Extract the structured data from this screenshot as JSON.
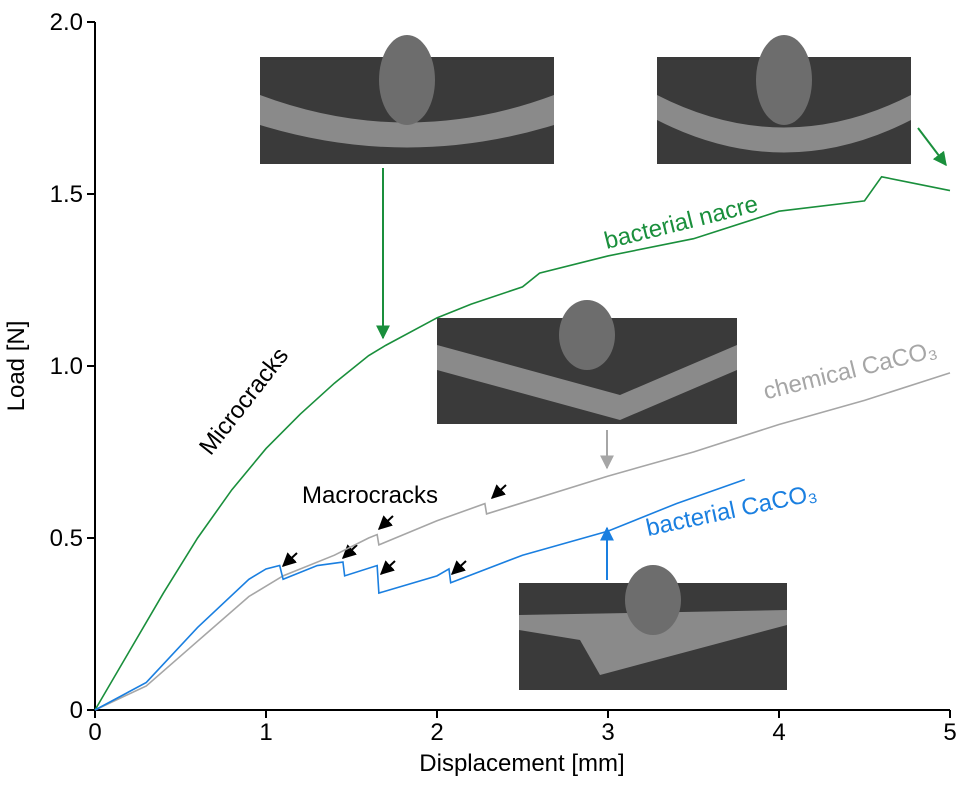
{
  "chart_data": {
    "type": "line",
    "x_label": "Displacement [mm]",
    "y_label": "Load [N]",
    "xlim": [
      0,
      5
    ],
    "xticks": [
      0,
      1,
      2,
      3,
      4,
      5
    ],
    "ylim": [
      0,
      2
    ],
    "yticks": [
      0,
      0.5,
      {
        "value": 1,
        "label": "1.0"
      },
      1.5,
      {
        "value": 2,
        "label": "2.0"
      }
    ],
    "series": [
      {
        "name": "bacterial nacre",
        "color": "#1a8f3c",
        "x": [
          0,
          0.2,
          0.4,
          0.6,
          0.8,
          1.0,
          1.2,
          1.4,
          1.6,
          1.7,
          2.0,
          2.2,
          2.5,
          2.6,
          3.0,
          3.5,
          4.0,
          4.5,
          4.6,
          4.8,
          5.0
        ],
        "values": [
          0,
          0.17,
          0.34,
          0.5,
          0.64,
          0.76,
          0.86,
          0.95,
          1.03,
          1.06,
          1.14,
          1.18,
          1.23,
          1.27,
          1.32,
          1.37,
          1.45,
          1.48,
          1.55,
          1.53,
          1.51
        ]
      },
      {
        "name": "chemical CaCO₃",
        "color": "#a6a6a6",
        "x": [
          0,
          0.3,
          0.6,
          0.9,
          1.1,
          1.4,
          1.6,
          1.65,
          1.66,
          2.0,
          2.28,
          2.29,
          3.0,
          3.5,
          4.0,
          4.5,
          5.0
        ],
        "values": [
          0,
          0.07,
          0.2,
          0.33,
          0.39,
          0.45,
          0.5,
          0.51,
          0.48,
          0.55,
          0.6,
          0.57,
          0.68,
          0.75,
          0.83,
          0.9,
          0.98
        ]
      },
      {
        "name": "bacterial CaCO₃",
        "color": "#1a7fe0",
        "x": [
          0,
          0.3,
          0.6,
          0.9,
          1.0,
          1.08,
          1.1,
          1.3,
          1.45,
          1.46,
          1.65,
          1.66,
          2.0,
          2.07,
          2.08,
          2.5,
          3.0,
          3.4,
          3.8
        ],
        "values": [
          0,
          0.08,
          0.24,
          0.38,
          0.41,
          0.42,
          0.38,
          0.42,
          0.43,
          0.39,
          0.42,
          0.34,
          0.39,
          0.41,
          0.37,
          0.45,
          0.52,
          0.6,
          0.67
        ]
      }
    ],
    "annotations": [
      "Microcracks",
      "Macrocracks"
    ]
  }
}
